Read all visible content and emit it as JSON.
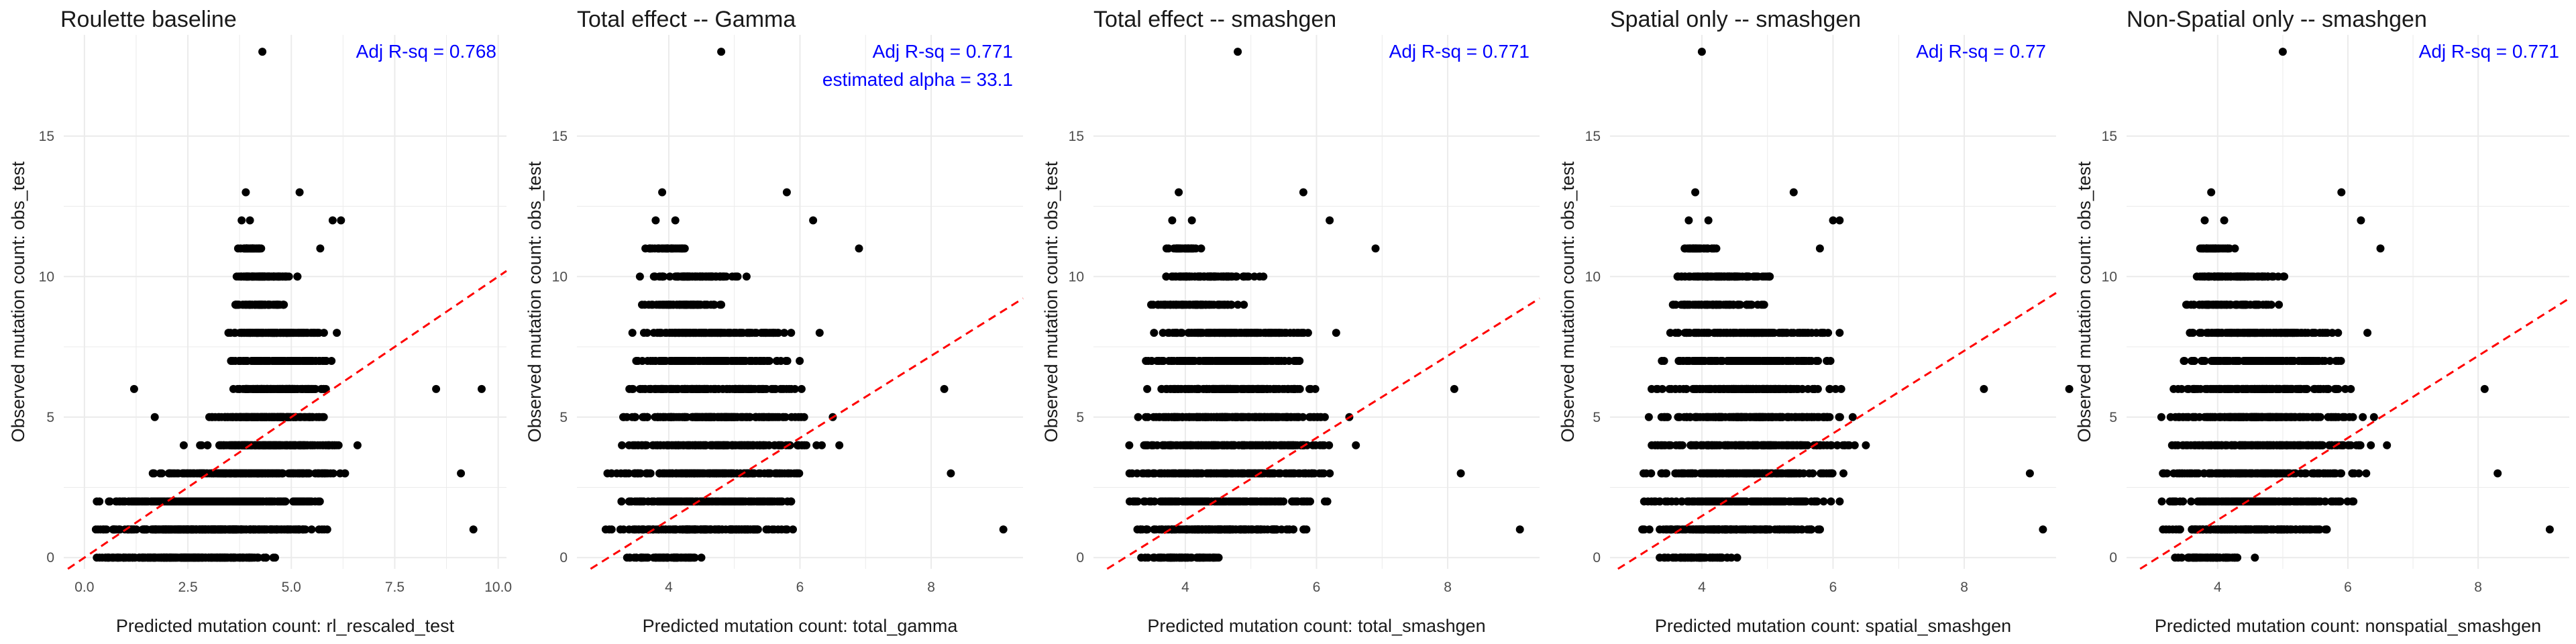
{
  "figure": {
    "y_axis_label": "Observed mutation count: obs_test",
    "colors": {
      "points": "#000000",
      "fit_line": "#ff0000",
      "annotation": "#0000ff",
      "grid": "#ebebeb",
      "text": "#1a1a1a",
      "tick_text": "#4d4d4d"
    },
    "grid": true,
    "annotation_placement": "top-right"
  },
  "chart_data": [
    {
      "type": "scatter",
      "title": "Roulette baseline",
      "xlabel": "Predicted mutation count: rl_rescaled_test",
      "ylabel": "Observed mutation count: obs_test",
      "xlim": [
        -0.5,
        10.2
      ],
      "ylim": [
        -0.4,
        18.6
      ],
      "x_ticks": [
        0,
        2.5,
        5,
        7.5,
        10
      ],
      "x_tick_labels": [
        "0.0",
        "2.5",
        "5.0",
        "7.5",
        "10.0"
      ],
      "y_ticks": [
        0,
        5,
        10,
        15
      ],
      "y_tick_labels": [
        "0",
        "5",
        "10",
        "15"
      ],
      "annotations": [
        "Adj R-sq = 0.768"
      ],
      "fit_line": {
        "intercept": 0.0,
        "slope": 1.0,
        "style": "dashed"
      },
      "clusters": [
        {
          "y": 0,
          "x_min": 0.0,
          "x_max": 4.9
        },
        {
          "y": 1,
          "x_min": 0.1,
          "x_max": 6.0
        },
        {
          "y": 2,
          "x_min": 0.3,
          "x_max": 6.0
        },
        {
          "y": 3,
          "x_min": 1.5,
          "x_max": 6.4
        },
        {
          "y": 4,
          "x_min": 2.4,
          "x_max": 6.3
        },
        {
          "y": 5,
          "x_min": 2.9,
          "x_max": 6.0
        },
        {
          "y": 6,
          "x_min": 3.4,
          "x_max": 6.0
        },
        {
          "y": 7,
          "x_min": 3.4,
          "x_max": 6.1
        },
        {
          "y": 8,
          "x_min": 3.4,
          "x_max": 5.9
        },
        {
          "y": 9,
          "x_min": 3.5,
          "x_max": 5.0
        },
        {
          "y": 10,
          "x_min": 3.5,
          "x_max": 5.2
        },
        {
          "y": 11,
          "x_min": 3.7,
          "x_max": 4.4
        }
      ],
      "points": [
        [
          4.3,
          18
        ],
        [
          3.9,
          13
        ],
        [
          5.2,
          13
        ],
        [
          3.8,
          12
        ],
        [
          4.0,
          12
        ],
        [
          6.0,
          12
        ],
        [
          6.2,
          12
        ],
        [
          5.7,
          11
        ],
        [
          1.2,
          6
        ],
        [
          1.7,
          5
        ],
        [
          2.4,
          4
        ],
        [
          8.5,
          6
        ],
        [
          9.6,
          6
        ],
        [
          9.1,
          3
        ],
        [
          9.4,
          1
        ],
        [
          0.3,
          2
        ],
        [
          0.7,
          1
        ],
        [
          1.0,
          0
        ],
        [
          6.6,
          4
        ],
        [
          6.3,
          3
        ],
        [
          6.1,
          8
        ]
      ]
    },
    {
      "type": "scatter",
      "title": "Total effect -- Gamma",
      "xlabel": "Predicted mutation count: total_gamma",
      "ylabel": "Observed mutation count: obs_test",
      "xlim": [
        2.6,
        9.4
      ],
      "ylim": [
        -0.4,
        18.6
      ],
      "x_ticks": [
        4,
        6,
        8
      ],
      "x_tick_labels": [
        "4",
        "6",
        "8"
      ],
      "y_ticks": [
        0,
        5,
        10,
        15
      ],
      "y_tick_labels": [
        "0",
        "5",
        "10",
        "15"
      ],
      "annotations": [
        "Adj R-sq = 0.771",
        "estimated alpha = 33.1"
      ],
      "fit_line": {
        "intercept": -4.5,
        "slope": 1.46,
        "style": "dashed"
      },
      "clusters": [
        {
          "y": 0,
          "x_min": 3.3,
          "x_max": 4.6
        },
        {
          "y": 1,
          "x_min": 3.0,
          "x_max": 6.0
        },
        {
          "y": 2,
          "x_min": 3.0,
          "x_max": 6.2
        },
        {
          "y": 3,
          "x_min": 3.0,
          "x_max": 6.3
        },
        {
          "y": 4,
          "x_min": 3.1,
          "x_max": 6.4
        },
        {
          "y": 5,
          "x_min": 3.1,
          "x_max": 6.3
        },
        {
          "y": 6,
          "x_min": 3.2,
          "x_max": 6.2
        },
        {
          "y": 7,
          "x_min": 3.3,
          "x_max": 6.1
        },
        {
          "y": 8,
          "x_min": 3.4,
          "x_max": 6.0
        },
        {
          "y": 9,
          "x_min": 3.4,
          "x_max": 5.0
        },
        {
          "y": 10,
          "x_min": 3.5,
          "x_max": 5.2
        },
        {
          "y": 11,
          "x_min": 3.6,
          "x_max": 4.3
        }
      ],
      "points": [
        [
          4.8,
          18
        ],
        [
          3.9,
          13
        ],
        [
          5.8,
          13
        ],
        [
          3.8,
          12
        ],
        [
          4.1,
          12
        ],
        [
          6.2,
          12
        ],
        [
          6.9,
          11
        ],
        [
          8.2,
          6
        ],
        [
          8.3,
          3
        ],
        [
          9.1,
          1
        ],
        [
          6.6,
          4
        ],
        [
          6.5,
          5
        ],
        [
          6.3,
          8
        ]
      ]
    },
    {
      "type": "scatter",
      "title": "Total effect -- smashgen",
      "xlabel": "Predicted mutation count: total_smashgen",
      "ylabel": "Observed mutation count: obs_test",
      "xlim": [
        2.6,
        9.4
      ],
      "ylim": [
        -0.4,
        18.6
      ],
      "x_ticks": [
        4,
        6,
        8
      ],
      "x_tick_labels": [
        "4",
        "6",
        "8"
      ],
      "y_ticks": [
        0,
        5,
        10,
        15
      ],
      "y_tick_labels": [
        "0",
        "5",
        "10",
        "15"
      ],
      "annotations": [
        "Adj R-sq = 0.771"
      ],
      "fit_line": {
        "intercept": -4.5,
        "slope": 1.46,
        "style": "dashed"
      },
      "clusters": [
        {
          "y": 0,
          "x_min": 3.3,
          "x_max": 4.6
        },
        {
          "y": 1,
          "x_min": 3.0,
          "x_max": 6.0
        },
        {
          "y": 2,
          "x_min": 3.0,
          "x_max": 6.2
        },
        {
          "y": 3,
          "x_min": 3.0,
          "x_max": 6.3
        },
        {
          "y": 4,
          "x_min": 3.1,
          "x_max": 6.4
        },
        {
          "y": 5,
          "x_min": 3.1,
          "x_max": 6.3
        },
        {
          "y": 6,
          "x_min": 3.2,
          "x_max": 6.2
        },
        {
          "y": 7,
          "x_min": 3.3,
          "x_max": 6.1
        },
        {
          "y": 8,
          "x_min": 3.4,
          "x_max": 6.0
        },
        {
          "y": 9,
          "x_min": 3.4,
          "x_max": 5.0
        },
        {
          "y": 10,
          "x_min": 3.5,
          "x_max": 5.2
        },
        {
          "y": 11,
          "x_min": 3.6,
          "x_max": 4.3
        }
      ],
      "points": [
        [
          4.8,
          18
        ],
        [
          3.9,
          13
        ],
        [
          5.8,
          13
        ],
        [
          3.8,
          12
        ],
        [
          4.1,
          12
        ],
        [
          6.2,
          12
        ],
        [
          6.9,
          11
        ],
        [
          8.1,
          6
        ],
        [
          8.2,
          3
        ],
        [
          9.1,
          1
        ],
        [
          6.6,
          4
        ],
        [
          6.5,
          5
        ],
        [
          6.3,
          8
        ]
      ]
    },
    {
      "type": "scatter",
      "title": "Spatial only -- smashgen",
      "xlabel": "Predicted mutation count: spatial_smashgen",
      "ylabel": "Observed mutation count: obs_test",
      "xlim": [
        2.6,
        9.4
      ],
      "ylim": [
        -0.4,
        18.6
      ],
      "x_ticks": [
        4,
        6,
        8
      ],
      "x_tick_labels": [
        "4",
        "6",
        "8"
      ],
      "y_ticks": [
        0,
        5,
        10,
        15
      ],
      "y_tick_labels": [
        "0",
        "5",
        "10",
        "15"
      ],
      "annotations": [
        "Adj R-sq = 0.77"
      ],
      "fit_line": {
        "intercept": -4.4,
        "slope": 1.47,
        "style": "dashed"
      },
      "clusters": [
        {
          "y": 0,
          "x_min": 3.3,
          "x_max": 4.6
        },
        {
          "y": 1,
          "x_min": 3.0,
          "x_max": 6.0
        },
        {
          "y": 2,
          "x_min": 3.0,
          "x_max": 6.2
        },
        {
          "y": 3,
          "x_min": 3.0,
          "x_max": 6.3
        },
        {
          "y": 4,
          "x_min": 3.1,
          "x_max": 6.4
        },
        {
          "y": 5,
          "x_min": 3.1,
          "x_max": 6.3
        },
        {
          "y": 6,
          "x_min": 3.2,
          "x_max": 6.2
        },
        {
          "y": 7,
          "x_min": 3.3,
          "x_max": 6.1
        },
        {
          "y": 8,
          "x_min": 3.4,
          "x_max": 6.0
        },
        {
          "y": 9,
          "x_min": 3.4,
          "x_max": 5.0
        },
        {
          "y": 10,
          "x_min": 3.5,
          "x_max": 5.2
        },
        {
          "y": 11,
          "x_min": 3.6,
          "x_max": 4.3
        }
      ],
      "points": [
        [
          4.0,
          18
        ],
        [
          3.9,
          13
        ],
        [
          5.4,
          13
        ],
        [
          3.8,
          12
        ],
        [
          4.1,
          12
        ],
        [
          6.0,
          12
        ],
        [
          6.1,
          12
        ],
        [
          5.8,
          11
        ],
        [
          8.3,
          6
        ],
        [
          9.0,
          3
        ],
        [
          9.2,
          1
        ],
        [
          9.6,
          6
        ],
        [
          6.5,
          4
        ],
        [
          6.3,
          5
        ],
        [
          6.1,
          8
        ]
      ]
    },
    {
      "type": "scatter",
      "title": "Non-Spatial only -- smashgen",
      "xlabel": "Predicted mutation count: nonspatial_smashgen",
      "ylabel": "Observed mutation count: obs_test",
      "xlim": [
        2.6,
        9.4
      ],
      "ylim": [
        -0.4,
        18.6
      ],
      "x_ticks": [
        4,
        6,
        8
      ],
      "x_tick_labels": [
        "4",
        "6",
        "8"
      ],
      "y_ticks": [
        0,
        5,
        10,
        15
      ],
      "y_tick_labels": [
        "0",
        "5",
        "10",
        "15"
      ],
      "annotations": [
        "Adj R-sq = 0.771"
      ],
      "fit_line": {
        "intercept": -4.5,
        "slope": 1.46,
        "style": "dashed"
      },
      "clusters": [
        {
          "y": 0,
          "x_min": 3.3,
          "x_max": 4.6
        },
        {
          "y": 1,
          "x_min": 3.0,
          "x_max": 6.0
        },
        {
          "y": 2,
          "x_min": 3.0,
          "x_max": 6.2
        },
        {
          "y": 3,
          "x_min": 3.0,
          "x_max": 6.3
        },
        {
          "y": 4,
          "x_min": 3.1,
          "x_max": 6.4
        },
        {
          "y": 5,
          "x_min": 3.1,
          "x_max": 6.3
        },
        {
          "y": 6,
          "x_min": 3.2,
          "x_max": 6.2
        },
        {
          "y": 7,
          "x_min": 3.3,
          "x_max": 6.1
        },
        {
          "y": 8,
          "x_min": 3.4,
          "x_max": 6.0
        },
        {
          "y": 9,
          "x_min": 3.4,
          "x_max": 5.0
        },
        {
          "y": 10,
          "x_min": 3.5,
          "x_max": 5.2
        },
        {
          "y": 11,
          "x_min": 3.6,
          "x_max": 4.3
        }
      ],
      "points": [
        [
          5.0,
          18
        ],
        [
          3.9,
          13
        ],
        [
          5.9,
          13
        ],
        [
          3.8,
          12
        ],
        [
          4.1,
          12
        ],
        [
          6.2,
          12
        ],
        [
          6.5,
          11
        ],
        [
          8.1,
          6
        ],
        [
          8.3,
          3
        ],
        [
          9.1,
          1
        ],
        [
          6.6,
          4
        ],
        [
          6.4,
          5
        ],
        [
          6.3,
          8
        ]
      ]
    }
  ]
}
